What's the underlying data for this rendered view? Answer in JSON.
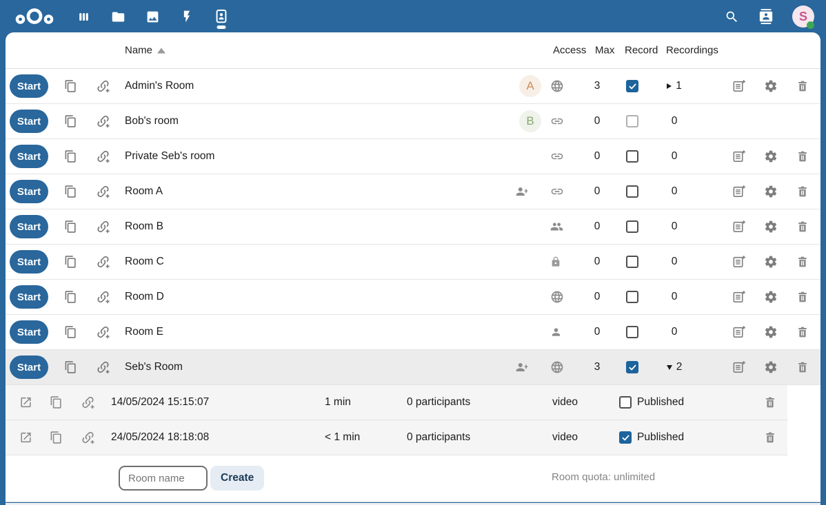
{
  "theme": {
    "primary": "#29679c",
    "selected_row": "#ececec",
    "recordings_bg": "#f5f5f5",
    "checkbox_checked": "#1c649b",
    "create_bg": "#e6ecf3",
    "create_text": "#1a3a57",
    "status_color": "#3da854"
  },
  "topbar": {
    "logo_icon": "nextcloud-logo",
    "apps": [
      {
        "name": "dashboard",
        "icon": "dashboard-icon",
        "active": false
      },
      {
        "name": "files",
        "icon": "folder-icon",
        "active": false
      },
      {
        "name": "photos",
        "icon": "photos-icon",
        "active": false
      },
      {
        "name": "activity",
        "icon": "lightning-icon",
        "active": false
      },
      {
        "name": "meeting-rooms",
        "icon": "badge-person-icon",
        "active": true
      }
    ],
    "search_icon": "search-icon",
    "contacts_icon": "contacts-icon",
    "avatar": {
      "initial": "S",
      "bg": "#f6e6ee",
      "color": "#c9548c",
      "status": "online"
    }
  },
  "table": {
    "headers": {
      "name": "Name",
      "access": "Access",
      "max": "Max",
      "record": "Record",
      "recordings": "Recordings"
    },
    "start_label": "Start",
    "row_icons": [
      "copy-icon",
      "link-add-icon"
    ],
    "action_icons": [
      "document-add-icon",
      "settings-icon",
      "delete-icon"
    ],
    "rooms": [
      {
        "name": "Admin's Room",
        "avatar": {
          "initial": "A",
          "bg": "#f7efe6",
          "color": "#cd8e5c"
        },
        "shared": false,
        "access_icon": "globe",
        "max": "3",
        "record_checked": true,
        "record_disabled": false,
        "recordings_count": "1",
        "caret": "right",
        "actions": true,
        "selected": false
      },
      {
        "name": "Bob's room",
        "avatar": {
          "initial": "B",
          "bg": "#eff3eb",
          "color": "#8aa870"
        },
        "shared": false,
        "access_icon": "link",
        "max": "0",
        "record_checked": false,
        "record_disabled": true,
        "recordings_count": "0",
        "caret": "none",
        "actions": false,
        "selected": false
      },
      {
        "name": "Private Seb's room",
        "avatar": null,
        "shared": false,
        "access_icon": "link",
        "max": "0",
        "record_checked": false,
        "record_disabled": false,
        "recordings_count": "0",
        "caret": "none",
        "actions": true,
        "selected": false
      },
      {
        "name": "Room A",
        "avatar": null,
        "shared": true,
        "access_icon": "link",
        "max": "0",
        "record_checked": false,
        "record_disabled": false,
        "recordings_count": "0",
        "caret": "none",
        "actions": true,
        "selected": false
      },
      {
        "name": "Room B",
        "avatar": null,
        "shared": false,
        "access_icon": "people",
        "max": "0",
        "record_checked": false,
        "record_disabled": false,
        "recordings_count": "0",
        "caret": "none",
        "actions": true,
        "selected": false
      },
      {
        "name": "Room C",
        "avatar": null,
        "shared": false,
        "access_icon": "lock",
        "max": "0",
        "record_checked": false,
        "record_disabled": false,
        "recordings_count": "0",
        "caret": "none",
        "actions": true,
        "selected": false
      },
      {
        "name": "Room D",
        "avatar": null,
        "shared": false,
        "access_icon": "globe",
        "max": "0",
        "record_checked": false,
        "record_disabled": false,
        "recordings_count": "0",
        "caret": "none",
        "actions": true,
        "selected": false
      },
      {
        "name": "Room E",
        "avatar": null,
        "shared": false,
        "access_icon": "person",
        "max": "0",
        "record_checked": false,
        "record_disabled": false,
        "recordings_count": "0",
        "caret": "none",
        "actions": true,
        "selected": false
      },
      {
        "name": "Seb's Room",
        "avatar": null,
        "shared": true,
        "access_icon": "globe",
        "max": "3",
        "record_checked": true,
        "record_disabled": false,
        "recordings_count": "2",
        "caret": "down",
        "actions": true,
        "selected": true
      }
    ]
  },
  "recordings": {
    "row_icons": [
      "open-in-new-icon",
      "copy-icon",
      "link-add-icon"
    ],
    "items": [
      {
        "date": "14/05/2024 15:15:07",
        "duration": "1 min",
        "participants": "0 participants",
        "type": "video",
        "published": false,
        "published_label": "Published"
      },
      {
        "date": "24/05/2024 18:18:08",
        "duration": "< 1 min",
        "participants": "0 participants",
        "type": "video",
        "published": true,
        "published_label": "Published"
      }
    ]
  },
  "footer": {
    "room_name_placeholder": "Room name",
    "create_label": "Create",
    "quota": "Room quota: unlimited"
  }
}
